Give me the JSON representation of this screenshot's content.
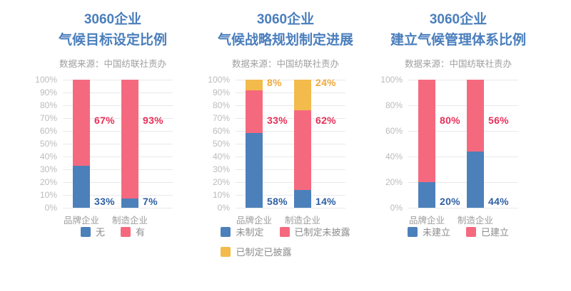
{
  "page": {
    "background": "#FFFFFF"
  },
  "colors": {
    "title_text": "#4A7EBC",
    "source_text": "#9E9E9E",
    "tick_text": "#BBBBBB",
    "gridline": "#E9E9E9",
    "category_text": "#9B9B9B",
    "legend_text": "#8C8C8C",
    "bar_blue": "#4C80BA",
    "bar_pink": "#F5697F",
    "bar_yellow": "#F2BB4B",
    "label_blue": "#2E5FA3",
    "label_pink": "#E73059",
    "label_yellow": "#F0A93C"
  },
  "chart_data": [
    {
      "type": "bar",
      "stacked": true,
      "title_lines": [
        "3060企业",
        "气候目标设定比例"
      ],
      "source": "数据来源：中国纺联社责办",
      "categories": [
        "品牌企业",
        "制造企业"
      ],
      "series": [
        {
          "name": "无",
          "values": [
            33,
            7
          ],
          "color": "#4C80BA",
          "label_color": "#2E5FA3",
          "label_pos": "bottom"
        },
        {
          "name": "有",
          "values": [
            67,
            93
          ],
          "color": "#F5697F",
          "label_color": "#E73059",
          "label_pos": "mid"
        }
      ],
      "ylim": [
        0,
        100
      ],
      "y_tick_step": 10,
      "y_tick_suffix": "%",
      "value_suffix": "%",
      "grid": true,
      "legend_position": "bottom",
      "legend_rows": [
        [
          0,
          1
        ]
      ]
    },
    {
      "type": "bar",
      "stacked": true,
      "title_lines": [
        "3060企业",
        "气候战略规划制定进展"
      ],
      "source": "数据来源：中国纺联社责办",
      "categories": [
        "品牌企业",
        "制造企业"
      ],
      "series": [
        {
          "name": "未制定",
          "values": [
            58,
            14
          ],
          "color": "#4C80BA",
          "label_color": "#2E5FA3",
          "label_pos": "bottom"
        },
        {
          "name": "已制定未披露",
          "values": [
            33,
            62
          ],
          "color": "#F5697F",
          "label_color": "#E73059",
          "label_pos": "mid"
        },
        {
          "name": "已制定已披露",
          "values": [
            8,
            24
          ],
          "color": "#F2BB4B",
          "label_color": "#F0A93C",
          "label_pos": "top"
        }
      ],
      "ylim": [
        0,
        100
      ],
      "y_tick_step": 10,
      "y_tick_suffix": "%",
      "value_suffix": "%",
      "grid": true,
      "legend_position": "bottom",
      "legend_rows": [
        [
          0,
          1
        ],
        [
          2
        ]
      ]
    },
    {
      "type": "bar",
      "stacked": true,
      "title_lines": [
        "3060企业",
        "建立气候管理体系比例"
      ],
      "source": "数据来源：中国纺联社责办",
      "categories": [
        "品牌企业",
        "制造企业"
      ],
      "series": [
        {
          "name": "未建立",
          "values": [
            20,
            44
          ],
          "color": "#4C80BA",
          "label_color": "#2E5FA3",
          "label_pos": "bottom"
        },
        {
          "name": "已建立",
          "values": [
            80,
            56
          ],
          "color": "#F5697F",
          "label_color": "#E73059",
          "label_pos": "mid"
        }
      ],
      "ylim": [
        0,
        100
      ],
      "y_tick_step": 20,
      "y_tick_suffix": "%",
      "value_suffix": "%",
      "grid": true,
      "legend_position": "bottom",
      "legend_rows": [
        [
          0,
          1
        ]
      ]
    }
  ]
}
